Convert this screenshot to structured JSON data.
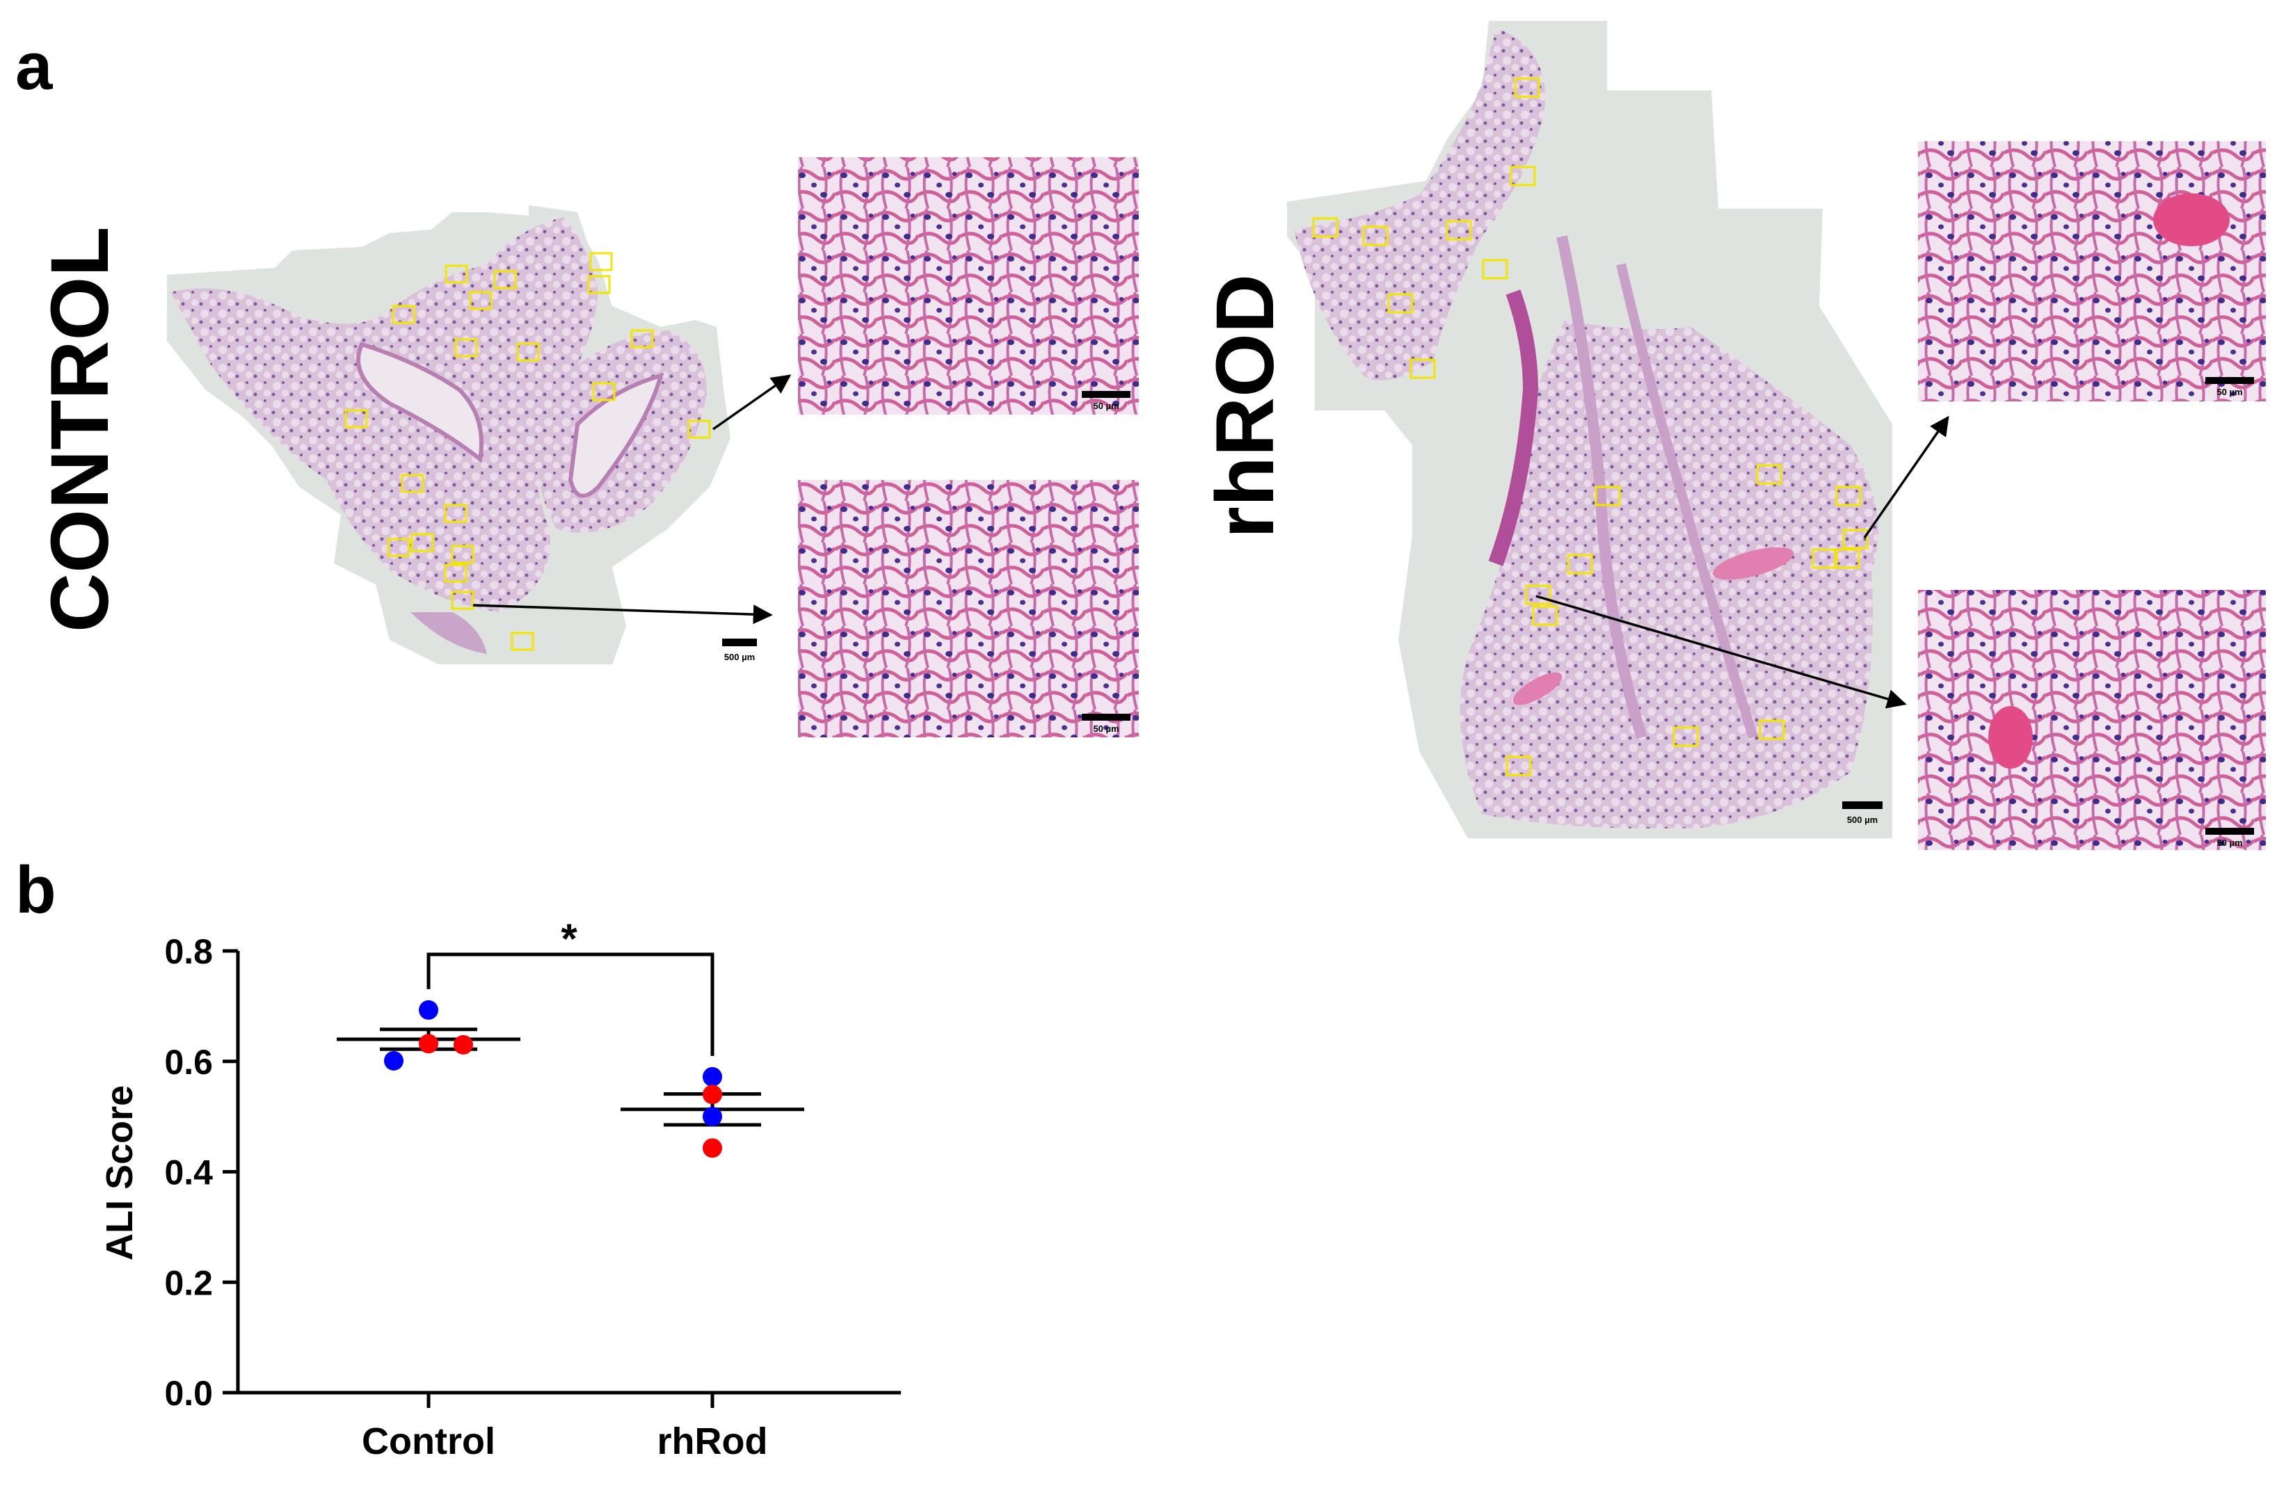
{
  "panel_a": {
    "letter": "a",
    "groups": [
      {
        "label": "CONTROL",
        "overview_scale": "500 µm",
        "zoom_scale": "50 µm"
      },
      {
        "label": "rhROD",
        "overview_scale": "500 µm",
        "zoom_scale": "50 µm"
      }
    ],
    "colors": {
      "tissue_background": "#dfe3df",
      "tissue_stain": "#c9a5c9",
      "roi_box": "#f2e600",
      "arrow": "#000000"
    }
  },
  "panel_b": {
    "letter": "b",
    "significance": "*"
  },
  "chart_data": {
    "type": "scatter",
    "categories": [
      "Control",
      "rhRod"
    ],
    "ylabel": "ALI Score",
    "xlabel": "",
    "ylim": [
      0,
      0.8
    ],
    "yticks": [
      "0.0",
      "0.2",
      "0.4",
      "0.6",
      "0.8"
    ],
    "mean": [
      0.64,
      0.513
    ],
    "sem": [
      0.018,
      0.028
    ],
    "points": [
      {
        "group": "Control",
        "value": 0.693,
        "color": "#0000ff"
      },
      {
        "group": "Control",
        "value": 0.601,
        "color": "#0000ff"
      },
      {
        "group": "Control",
        "value": 0.632,
        "color": "#ff0000"
      },
      {
        "group": "Control",
        "value": 0.63,
        "color": "#ff0000"
      },
      {
        "group": "rhRod",
        "value": 0.572,
        "color": "#0000ff"
      },
      {
        "group": "rhRod",
        "value": 0.5,
        "color": "#0000ff"
      },
      {
        "group": "rhRod",
        "value": 0.54,
        "color": "#ff0000"
      },
      {
        "group": "rhRod",
        "value": 0.443,
        "color": "#ff0000"
      }
    ],
    "grid": false,
    "legend": "none"
  }
}
